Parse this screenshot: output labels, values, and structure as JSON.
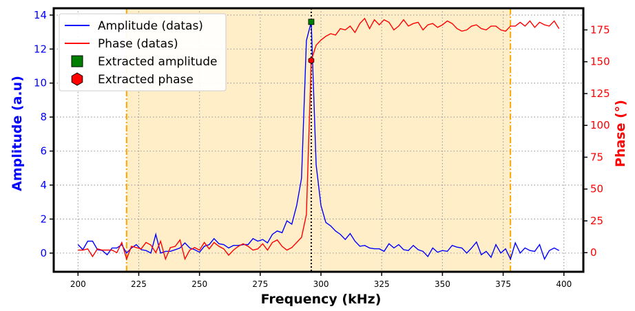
{
  "chart_data": {
    "type": "line",
    "xlabel": "Frequency (kHz)",
    "ylabel_left": "Amplitude (a.u)",
    "ylabel_right": "Phase (°)",
    "xlim": [
      190,
      408
    ],
    "ylim_left": [
      -1.1,
      14.4
    ],
    "ylim_right": [
      -15,
      192
    ],
    "xticks": [
      200,
      225,
      250,
      275,
      300,
      325,
      350,
      375,
      400
    ],
    "yticks_left": [
      0,
      2,
      4,
      6,
      8,
      10,
      12,
      14
    ],
    "yticks_right": [
      0,
      25,
      50,
      75,
      100,
      125,
      150,
      175
    ],
    "grid": true,
    "legend_position": "top-left",
    "colors": {
      "amplitude": "#0000ff",
      "phase": "#ff0000",
      "extracted_amplitude": "#008000",
      "extracted_phase": "#ff0000",
      "window": "#ffeec8",
      "window_edge": "#ffa500"
    },
    "band": {
      "start": 220,
      "end": 378
    },
    "extracted": {
      "frequency": 296,
      "amplitude": 13.6,
      "phase": 151
    },
    "legend": [
      {
        "label": "Amplitude (datas)",
        "kind": "line",
        "series": "amplitude"
      },
      {
        "label": "Phase (datas)",
        "kind": "line",
        "series": "phase"
      },
      {
        "label": "Extracted amplitude",
        "kind": "square",
        "series": "extracted_amplitude"
      },
      {
        "label": "Extracted phase",
        "kind": "hexagon",
        "series": "extracted_phase"
      }
    ],
    "x": [
      200,
      202,
      204,
      206,
      208,
      210,
      212,
      214,
      216,
      218,
      220,
      222,
      224,
      226,
      228,
      230,
      232,
      234,
      236,
      238,
      240,
      242,
      244,
      246,
      248,
      250,
      252,
      254,
      256,
      258,
      260,
      262,
      264,
      266,
      268,
      270,
      272,
      274,
      276,
      278,
      280,
      282,
      284,
      286,
      288,
      290,
      292,
      294,
      296,
      298,
      300,
      302,
      304,
      306,
      308,
      310,
      312,
      314,
      316,
      318,
      320,
      322,
      324,
      326,
      328,
      330,
      332,
      334,
      336,
      338,
      340,
      342,
      344,
      346,
      348,
      350,
      352,
      354,
      356,
      358,
      360,
      362,
      364,
      366,
      368,
      370,
      372,
      374,
      376,
      378,
      380,
      382,
      384,
      386,
      388,
      390,
      392,
      394,
      396,
      398
    ],
    "series": [
      {
        "name": "Amplitude (datas)",
        "axis": "left",
        "values": [
          0.5,
          0.2,
          0.7,
          0.7,
          0.2,
          0.15,
          -0.1,
          0.3,
          0.3,
          0.5,
          0.0,
          0.3,
          0.5,
          0.2,
          0.15,
          0.0,
          1.1,
          0.0,
          0.1,
          0.1,
          0.2,
          0.3,
          0.6,
          0.3,
          0.2,
          0.05,
          0.4,
          0.5,
          0.85,
          0.55,
          0.5,
          0.3,
          0.45,
          0.45,
          0.5,
          0.5,
          0.85,
          0.7,
          0.8,
          0.6,
          1.1,
          1.3,
          1.2,
          1.9,
          1.7,
          2.8,
          4.4,
          12.5,
          13.6,
          5.2,
          2.8,
          1.8,
          1.6,
          1.3,
          1.1,
          0.8,
          1.15,
          0.7,
          0.4,
          0.45,
          0.3,
          0.25,
          0.25,
          0.1,
          0.55,
          0.3,
          0.5,
          0.2,
          0.15,
          0.45,
          0.2,
          0.1,
          -0.2,
          0.3,
          0.05,
          0.15,
          0.1,
          0.45,
          0.35,
          0.3,
          0.0,
          0.3,
          0.65,
          -0.1,
          0.1,
          -0.25,
          0.5,
          0.0,
          0.25,
          -0.35,
          0.6,
          0.0,
          0.3,
          0.15,
          0.1,
          0.5,
          -0.35,
          0.15,
          0.3,
          0.15
        ]
      },
      {
        "name": "Phase (datas)",
        "axis": "right",
        "values": [
          2,
          2,
          3,
          -3,
          3,
          2,
          2,
          2,
          0,
          8,
          -5,
          5,
          4,
          3,
          8,
          6,
          0,
          9,
          -5,
          4,
          5,
          10,
          -5,
          2,
          4,
          2,
          8,
          3,
          8,
          5,
          3,
          -2,
          2,
          5,
          7,
          5,
          2,
          3,
          7,
          2,
          8,
          10,
          5,
          2,
          4,
          8,
          12,
          30,
          151,
          163,
          167,
          170,
          172,
          171,
          176,
          175,
          178,
          173,
          180,
          184,
          176,
          183,
          179,
          183,
          181,
          175,
          178,
          183,
          178,
          180,
          181,
          175,
          179,
          180,
          177,
          179,
          182,
          180,
          176,
          174,
          175,
          178,
          179,
          176,
          175,
          178,
          178,
          175,
          174,
          178,
          178,
          181,
          178,
          182,
          177,
          181,
          179,
          178,
          182,
          176
        ]
      }
    ]
  }
}
